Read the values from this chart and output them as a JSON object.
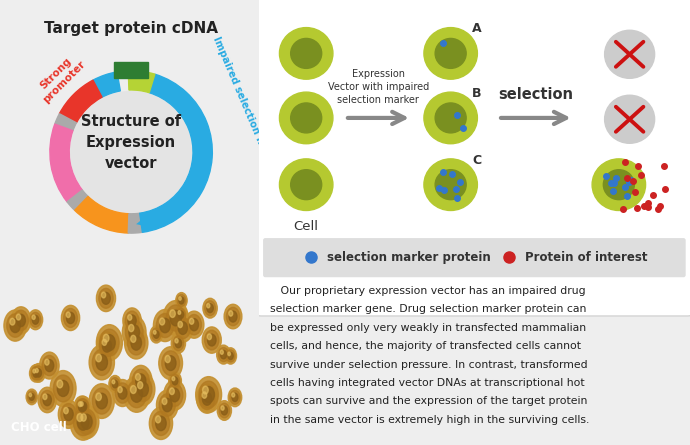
{
  "bg_color": "#eeeeee",
  "title_text": "Target protein cDNA",
  "vector_label": "Structure of\nExpression\nvector",
  "strong_promoter_label": "Strong\npromoter",
  "impaired_label": "Impaired selection marker",
  "arc_blue": "#29abe2",
  "arc_limegreen": "#b5d335",
  "arc_red": "#e8352a",
  "arc_pink": "#f06eaa",
  "arc_orange": "#f7941d",
  "arc_gray": "#aaaaaa",
  "arc_inner": "#e0e0e0",
  "green_block": "#2e7d32",
  "cell_outer": "#b5c930",
  "cell_inner": "#7a9020",
  "dead_cell_color": "#cccccc",
  "arrow_color": "#999999",
  "selection_text": "selection",
  "expression_text": "Expression\nVector with impaired\nselection marker",
  "cell_label": "Cell",
  "legend_blue": "#3377cc",
  "legend_red": "#cc2222",
  "legend_text1": "selection marker protein",
  "legend_text2": "Protein of interest",
  "body_text": "   Our proprietary expression vector has an impaired drug\nselection marker gene. Drug selection marker protein can\nbe expressed only very weakly in transfected mammalian\ncells, and hence, the majority of transfected cells cannot\nsurvive under selection pressure. In contrast, transformed\ncells having integrated vector DNAs at transcriptional hot\nspots can survive and the expression of the target protein\nin the same vector is extremely high in the surviving cells.",
  "cho_label": "CHO cell",
  "cho_bg": "#b8882a"
}
